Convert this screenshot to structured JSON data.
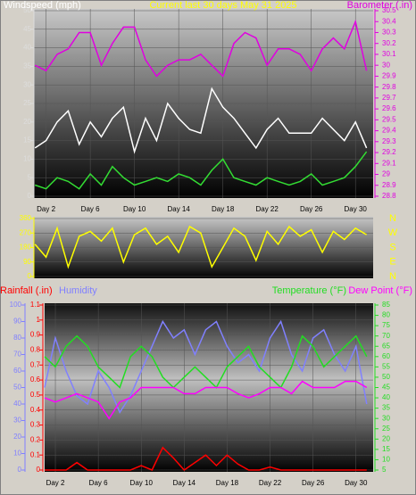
{
  "chart_data": [
    {
      "type": "line",
      "title": "Current last 30 days May 31 2025",
      "title_color": "#ffff00",
      "x": [
        1,
        2,
        3,
        4,
        5,
        6,
        7,
        8,
        9,
        10,
        11,
        12,
        13,
        14,
        15,
        16,
        17,
        18,
        19,
        20,
        21,
        22,
        23,
        24,
        25,
        26,
        27,
        28,
        29,
        30,
        31
      ],
      "xlim": [
        0.9,
        31.6
      ],
      "xticks": [
        {
          "value": 2,
          "label": "Day 2"
        },
        {
          "value": 6,
          "label": "Day 6"
        },
        {
          "value": 10,
          "label": "Day 10"
        },
        {
          "value": 14,
          "label": "Day 14"
        },
        {
          "value": 18,
          "label": "Day 18"
        },
        {
          "value": 22,
          "label": "Day 22"
        },
        {
          "value": 26,
          "label": "Day 26"
        },
        {
          "value": 30,
          "label": "Day 30"
        }
      ],
      "ylim": [
        0,
        50
      ],
      "yticks": [
        0,
        5,
        10,
        15,
        20,
        25,
        30,
        35,
        40,
        45,
        50
      ],
      "y2lim": [
        28.8,
        30.5
      ],
      "y2ticks": [
        28.8,
        28.9,
        29,
        29.1,
        29.2,
        29.3,
        29.4,
        29.5,
        29.6,
        29.7,
        29.8,
        29.9,
        30,
        30.1,
        30.2,
        30.3,
        30.4,
        30.5
      ],
      "grid": true,
      "series": [
        {
          "name": "Windspeed (mph)",
          "color": "#ffffff",
          "values": [
            13,
            15,
            20,
            23,
            14,
            20,
            16,
            21,
            24,
            12,
            21,
            15,
            25,
            21,
            18,
            17,
            29,
            24,
            21,
            17,
            13,
            18,
            21,
            17,
            17,
            17,
            21,
            18,
            15,
            20,
            13
          ]
        },
        {
          "color": "#33dd33",
          "values": [
            3,
            2,
            5,
            4,
            2,
            6,
            3,
            8,
            5,
            3,
            4,
            5,
            4,
            6,
            5,
            3,
            7,
            10,
            5,
            4,
            3,
            5,
            4,
            3,
            4,
            6,
            3,
            4,
            5,
            8,
            12
          ]
        },
        {
          "name": "Barometer (.in)",
          "color": "#e000e0",
          "axis": "y2",
          "values": [
            30.0,
            29.95,
            30.1,
            30.15,
            30.3,
            30.3,
            30.0,
            30.2,
            30.35,
            30.35,
            30.05,
            29.9,
            30.0,
            30.05,
            30.05,
            30.1,
            30.0,
            29.9,
            30.2,
            30.3,
            30.25,
            30.0,
            30.15,
            30.15,
            30.1,
            29.95,
            30.15,
            30.25,
            30.15,
            30.4,
            29.95
          ]
        }
      ]
    },
    {
      "type": "line",
      "x": [
        1,
        2,
        3,
        4,
        5,
        6,
        7,
        8,
        9,
        10,
        11,
        12,
        13,
        14,
        15,
        16,
        17,
        18,
        19,
        20,
        21,
        22,
        23,
        24,
        25,
        26,
        27,
        28,
        29,
        30,
        31
      ],
      "xlim": [
        0.9,
        31.6
      ],
      "ylim": [
        0,
        360
      ],
      "yticks": [
        0,
        90,
        180,
        270,
        360
      ],
      "y2lim": [
        0,
        360
      ],
      "y2ticks": [
        {
          "value": 360,
          "label": "N"
        },
        {
          "value": 270,
          "label": "W"
        },
        {
          "value": 180,
          "label": "S"
        },
        {
          "value": 90,
          "label": "E"
        },
        {
          "value": 0,
          "label": "N"
        }
      ],
      "grid": true,
      "series": [
        {
          "color": "#ffff00",
          "values": [
            200,
            120,
            300,
            60,
            250,
            280,
            220,
            300,
            90,
            260,
            300,
            200,
            250,
            150,
            310,
            270,
            60,
            180,
            300,
            250,
            100,
            280,
            200,
            310,
            250,
            290,
            150,
            280,
            230,
            300,
            260
          ]
        }
      ]
    },
    {
      "type": "line",
      "x": [
        1,
        2,
        3,
        4,
        5,
        6,
        7,
        8,
        9,
        10,
        11,
        12,
        13,
        14,
        15,
        16,
        17,
        18,
        19,
        20,
        21,
        22,
        23,
        24,
        25,
        26,
        27,
        28,
        29,
        30,
        31
      ],
      "xlim": [
        1.0,
        31.6
      ],
      "xticks": [
        {
          "value": 2,
          "label": "Day 2"
        },
        {
          "value": 6,
          "label": "Day 6"
        },
        {
          "value": 10,
          "label": "Day 10"
        },
        {
          "value": 14,
          "label": "Day 14"
        },
        {
          "value": 18,
          "label": "Day 18"
        },
        {
          "value": 22,
          "label": "Day 22"
        },
        {
          "value": 26,
          "label": "Day 26"
        },
        {
          "value": 30,
          "label": "Day 30"
        }
      ],
      "ylim": [
        0,
        1.1
      ],
      "yticks": [
        0,
        0.1,
        0.2,
        0.3,
        0.4,
        0.5,
        0.6,
        0.7,
        0.8,
        0.9,
        1,
        1.1
      ],
      "y3lim": [
        0,
        100
      ],
      "y3ticks": [
        0,
        10,
        20,
        30,
        40,
        50,
        60,
        70,
        80,
        90,
        100
      ],
      "y2lim": [
        5,
        85
      ],
      "y2ticks": [
        5,
        10,
        15,
        20,
        25,
        30,
        35,
        40,
        45,
        50,
        55,
        60,
        65,
        70,
        75,
        80,
        85
      ],
      "grid": true,
      "series": [
        {
          "name": "Rainfall (.in)",
          "color": "#ff0000",
          "values": [
            0,
            0,
            0,
            0.05,
            0,
            0,
            0,
            0,
            0,
            0.03,
            0,
            0.15,
            0.08,
            0,
            0.05,
            0.1,
            0.03,
            0.1,
            0.04,
            0,
            0,
            0.02,
            0,
            0,
            0,
            0,
            0,
            0,
            0,
            0,
            0
          ]
        },
        {
          "name": "Humidity",
          "color": "#8080ff",
          "axis": "y3",
          "values": [
            50,
            80,
            60,
            45,
            40,
            60,
            50,
            35,
            45,
            60,
            75,
            90,
            80,
            85,
            70,
            85,
            90,
            75,
            65,
            70,
            60,
            80,
            90,
            70,
            60,
            80,
            85,
            70,
            60,
            75,
            40
          ]
        },
        {
          "name": "Temperature (°F)",
          "color": "#22dd22",
          "axis": "y2",
          "values": [
            60,
            55,
            65,
            70,
            65,
            55,
            50,
            45,
            60,
            65,
            60,
            50,
            45,
            50,
            55,
            50,
            45,
            55,
            60,
            65,
            55,
            50,
            45,
            55,
            70,
            65,
            55,
            60,
            65,
            70,
            60
          ]
        },
        {
          "name": "Dew Point (°F)",
          "color": "#ff00ff",
          "axis": "y2",
          "values": [
            40,
            38,
            40,
            42,
            40,
            38,
            30,
            38,
            40,
            45,
            45,
            45,
            45,
            42,
            42,
            45,
            45,
            45,
            42,
            40,
            42,
            45,
            45,
            42,
            48,
            45,
            45,
            45,
            48,
            48,
            45
          ]
        }
      ]
    }
  ]
}
